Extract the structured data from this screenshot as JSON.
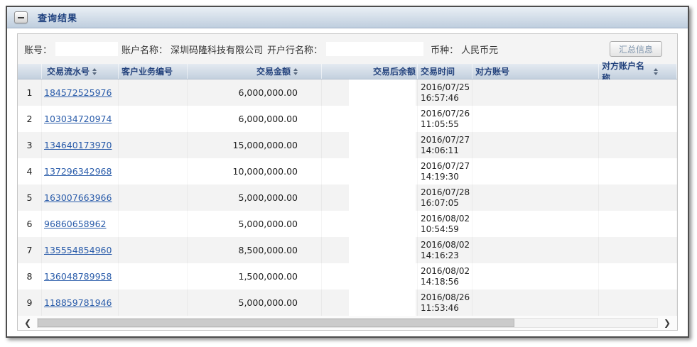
{
  "panel": {
    "title": "查询结果"
  },
  "info": {
    "account_label": "账号：",
    "account_name_label": "账户名称：",
    "account_name_value": "深圳码隆科技有限公司",
    "bank_name_label": "开户行名称：",
    "currency_label": "币种：",
    "currency_value": "人民币元",
    "summary_button": "汇总信息"
  },
  "table": {
    "columns": {
      "serial": "交易流水号",
      "business_no": "客户业务编号",
      "amount": "交易金额",
      "balance": "交易后余额",
      "time": "交易时间",
      "counterparty_account": "对方账号",
      "counterparty_name": "对方账户名称"
    },
    "rows": [
      {
        "num": "1",
        "serial": "184572525976",
        "business_no": "",
        "amount": "6,000,000.00",
        "balance": "",
        "date": "2016/07/25",
        "time": "16:57:46",
        "counterparty_account": "",
        "counterparty_name": ""
      },
      {
        "num": "2",
        "serial": "103034720974",
        "business_no": "",
        "amount": "6,000,000.00",
        "balance": "",
        "date": "2016/07/26",
        "time": "11:05:55",
        "counterparty_account": "",
        "counterparty_name": ""
      },
      {
        "num": "3",
        "serial": "134640173970",
        "business_no": "",
        "amount": "15,000,000.00",
        "balance": "",
        "date": "2016/07/27",
        "time": "14:06:11",
        "counterparty_account": "",
        "counterparty_name": ""
      },
      {
        "num": "4",
        "serial": "137296342968",
        "business_no": "",
        "amount": "10,000,000.00",
        "balance": "",
        "date": "2016/07/27",
        "time": "14:19:30",
        "counterparty_account": "",
        "counterparty_name": ""
      },
      {
        "num": "5",
        "serial": "163007663966",
        "business_no": "",
        "amount": "5,000,000.00",
        "balance": "",
        "date": "2016/07/28",
        "time": "16:07:05",
        "counterparty_account": "",
        "counterparty_name": ""
      },
      {
        "num": "6",
        "serial": "96860658962",
        "business_no": "",
        "amount": "5,000,000.00",
        "balance": "",
        "date": "2016/08/02",
        "time": "10:54:59",
        "counterparty_account": "",
        "counterparty_name": ""
      },
      {
        "num": "7",
        "serial": "135554854960",
        "business_no": "",
        "amount": "8,500,000.00",
        "balance": "",
        "date": "2016/08/02",
        "time": "14:16:23",
        "counterparty_account": "",
        "counterparty_name": ""
      },
      {
        "num": "8",
        "serial": "136048789958",
        "business_no": "",
        "amount": "1,500,000.00",
        "balance": "",
        "date": "2016/08/02",
        "time": "14:18:56",
        "counterparty_account": "",
        "counterparty_name": ""
      },
      {
        "num": "9",
        "serial": "118859781946",
        "business_no": "",
        "amount": "5,000,000.00",
        "balance": "",
        "date": "2016/08/26",
        "time": "11:53:46",
        "counterparty_account": "",
        "counterparty_name": ""
      }
    ]
  },
  "scrollbar": {
    "left_arrow": "❮",
    "right_arrow": "❯"
  },
  "colors": {
    "title_text": "#1c3f7d",
    "header_text": "#24437d",
    "header_bg_top": "#e4eaf1",
    "header_bg_bottom": "#c3d0de",
    "link": "#2a5caa",
    "row_alt_bg": "#f3f3f3",
    "panel_border": "#4d4d4d"
  }
}
